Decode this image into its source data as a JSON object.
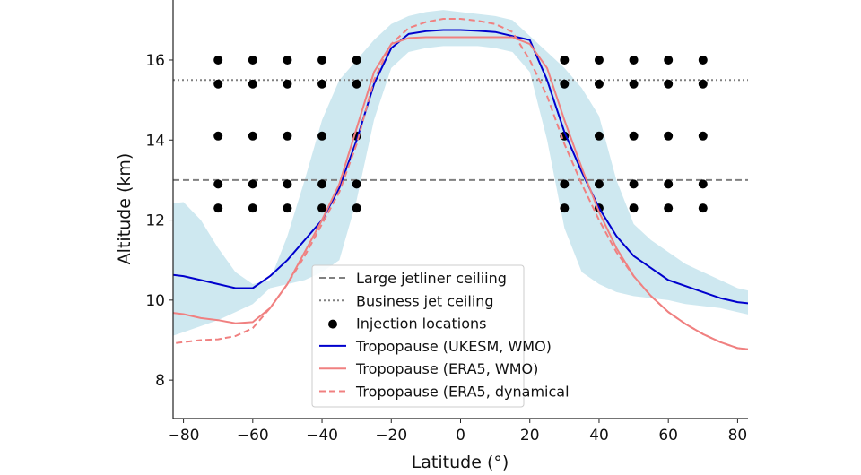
{
  "chart_data": {
    "type": "line",
    "title": "",
    "xlabel": "Latitude (°)",
    "ylabel": "Altitude (km)",
    "xlim": [
      -83,
      83
    ],
    "ylim": [
      7.04,
      17.5
    ],
    "xticks": [
      -80,
      -60,
      -40,
      -20,
      0,
      20,
      40,
      60,
      80
    ],
    "yticks": [
      8,
      10,
      12,
      14,
      16
    ],
    "grid": false,
    "legend_placement": "lower center",
    "x": [
      -85,
      -80,
      -75,
      -70,
      -65,
      -60,
      -55,
      -50,
      -45,
      -40,
      -35,
      -30,
      -25,
      -20,
      -15,
      -10,
      -5,
      0,
      5,
      10,
      15,
      20,
      25,
      30,
      35,
      40,
      45,
      50,
      55,
      60,
      65,
      70,
      75,
      80,
      85
    ],
    "band": {
      "color": "#add8e6",
      "lower": [
        9.05,
        9.2,
        9.35,
        9.5,
        9.7,
        9.9,
        10.3,
        10.4,
        10.5,
        10.7,
        11.0,
        12.5,
        14.5,
        15.8,
        16.2,
        16.3,
        16.35,
        16.35,
        16.35,
        16.3,
        16.2,
        15.7,
        14.0,
        11.8,
        10.7,
        10.4,
        10.2,
        10.1,
        10.05,
        10.0,
        9.9,
        9.85,
        9.8,
        9.7,
        9.6
      ],
      "upper": [
        12.4,
        12.45,
        12.0,
        11.3,
        10.7,
        10.4,
        10.5,
        11.6,
        13.0,
        14.5,
        15.5,
        16.0,
        16.5,
        16.9,
        17.1,
        17.2,
        17.25,
        17.2,
        17.15,
        17.1,
        17.0,
        16.6,
        16.2,
        15.8,
        15.3,
        14.6,
        13.0,
        11.9,
        11.5,
        11.2,
        10.9,
        10.7,
        10.5,
        10.3,
        10.2
      ]
    },
    "series": [
      {
        "name": "Tropopause (UKESM, WMO)",
        "color": "#0000cd",
        "style": "solid",
        "values": [
          10.65,
          10.6,
          10.5,
          10.4,
          10.3,
          10.3,
          10.6,
          11.0,
          11.5,
          12.0,
          12.8,
          14.0,
          15.4,
          16.3,
          16.65,
          16.72,
          16.75,
          16.75,
          16.73,
          16.7,
          16.6,
          16.5,
          15.5,
          14.2,
          13.2,
          12.3,
          11.6,
          11.1,
          10.8,
          10.5,
          10.35,
          10.2,
          10.05,
          9.95,
          9.9
        ]
      },
      {
        "name": "Tropopause (ERA5, WMO)",
        "color": "#f08080",
        "style": "solid",
        "values": [
          9.7,
          9.65,
          9.55,
          9.5,
          9.42,
          9.45,
          9.8,
          10.4,
          11.2,
          12.0,
          12.9,
          14.3,
          15.7,
          16.4,
          16.55,
          16.57,
          16.57,
          16.57,
          16.57,
          16.57,
          16.57,
          16.4,
          15.8,
          14.5,
          13.3,
          12.2,
          11.3,
          10.6,
          10.1,
          9.7,
          9.4,
          9.15,
          8.95,
          8.8,
          8.75
        ]
      },
      {
        "name": "Tropopause (ERA5, dynamical",
        "color": "#f08080",
        "style": "dashed",
        "values": [
          8.9,
          8.95,
          9.0,
          9.02,
          9.1,
          9.3,
          9.8,
          10.4,
          11.1,
          11.9,
          12.7,
          13.9,
          15.5,
          16.4,
          16.8,
          16.95,
          17.03,
          17.03,
          16.98,
          16.9,
          16.7,
          16.0,
          15.1,
          13.9,
          12.9,
          12.0,
          11.2,
          10.6,
          10.1,
          9.7,
          9.4,
          9.15,
          8.95,
          8.8,
          8.75
        ]
      }
    ],
    "hlines": [
      {
        "name": "Large jetliner ceiliing",
        "y": 13.0,
        "color": "#808080",
        "style": "dashed"
      },
      {
        "name": "Business jet ceiling",
        "y": 15.5,
        "color": "#808080",
        "style": "dotted"
      }
    ],
    "scatter": {
      "name": "Injection locations",
      "color": "#000000",
      "lats": [
        -70,
        -60,
        -50,
        -40,
        -30,
        30,
        40,
        50,
        60,
        70
      ],
      "alts": [
        16.0,
        15.4,
        14.1,
        12.9,
        12.3
      ]
    }
  }
}
